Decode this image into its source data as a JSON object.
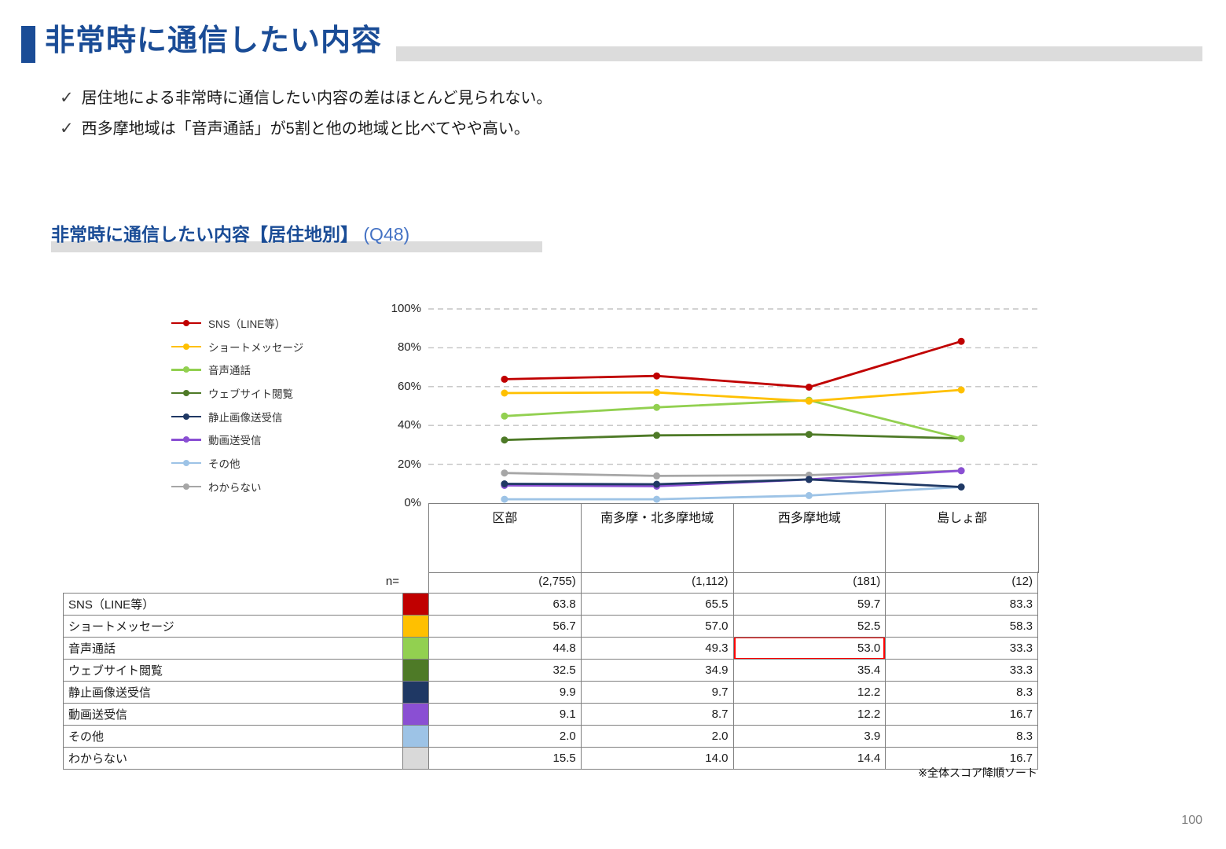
{
  "header": {
    "title": "非常時に通信したい内容"
  },
  "bullet_icon": "✓",
  "bullets": [
    "居住地による非常時に通信したい内容の差はほとんど見られない。",
    "西多摩地域は「音声通話」が5割と他の地域と比べてやや高い。"
  ],
  "section": {
    "title": "非常時に通信したい内容【居住地別】",
    "qcode": " (Q48)"
  },
  "colors": {
    "accent": "#1A4C96",
    "band": "#DCDCDC",
    "grid": "#C3C3C3",
    "border": "#7F7F7F",
    "highlight": "#FF0000"
  },
  "chart_data": {
    "type": "line",
    "title": "非常時に通信したい内容【居住地別】 (Q48)",
    "categories": [
      "区部",
      "南多摩・北多摩地域",
      "西多摩地域",
      "島しょ部"
    ],
    "n_label": "n=",
    "n_values": [
      "(2,755)",
      "(1,112)",
      "(181)",
      "(12)"
    ],
    "ylim": [
      0,
      100
    ],
    "ytick_step": 20,
    "ytick_labels": [
      "100%",
      "80%",
      "60%",
      "40%",
      "20%",
      "0%"
    ],
    "grid": "dashed-horizontal",
    "legend_position": "left",
    "series": [
      {
        "name": "SNS（LINE等）",
        "color": "#C00000",
        "swatch": "#C00000",
        "values": [
          63.8,
          65.5,
          59.7,
          83.3
        ]
      },
      {
        "name": "ショートメッセージ",
        "color": "#FFC000",
        "swatch": "#FFC000",
        "values": [
          56.7,
          57.0,
          52.5,
          58.3
        ]
      },
      {
        "name": "音声通話",
        "color": "#92D050",
        "swatch": "#92D050",
        "values": [
          44.8,
          49.3,
          53.0,
          33.3
        ]
      },
      {
        "name": "ウェブサイト閲覧",
        "color": "#4E7A27",
        "swatch": "#4E7A27",
        "values": [
          32.5,
          34.9,
          35.4,
          33.3
        ]
      },
      {
        "name": "静止画像送受信",
        "color": "#1F3864",
        "swatch": "#1F3864",
        "values": [
          9.9,
          9.7,
          12.2,
          8.3
        ]
      },
      {
        "name": "動画送受信",
        "color": "#8A4FD3",
        "swatch": "#8A4FD3",
        "values": [
          9.1,
          8.7,
          12.2,
          16.7
        ]
      },
      {
        "name": "その他",
        "color": "#9DC3E6",
        "swatch": "#9DC3E6",
        "values": [
          2.0,
          2.0,
          3.9,
          8.3
        ]
      },
      {
        "name": "わからない",
        "color": "#A6A6A6",
        "swatch": "#D9D9D9",
        "values": [
          15.5,
          14.0,
          14.4,
          16.7
        ]
      }
    ],
    "highlight": {
      "series": "音声通話",
      "category": "西多摩地域",
      "value": "53.0",
      "color": "#FF0000"
    }
  },
  "note": "※全体スコア降順ソート",
  "page_number": "100"
}
